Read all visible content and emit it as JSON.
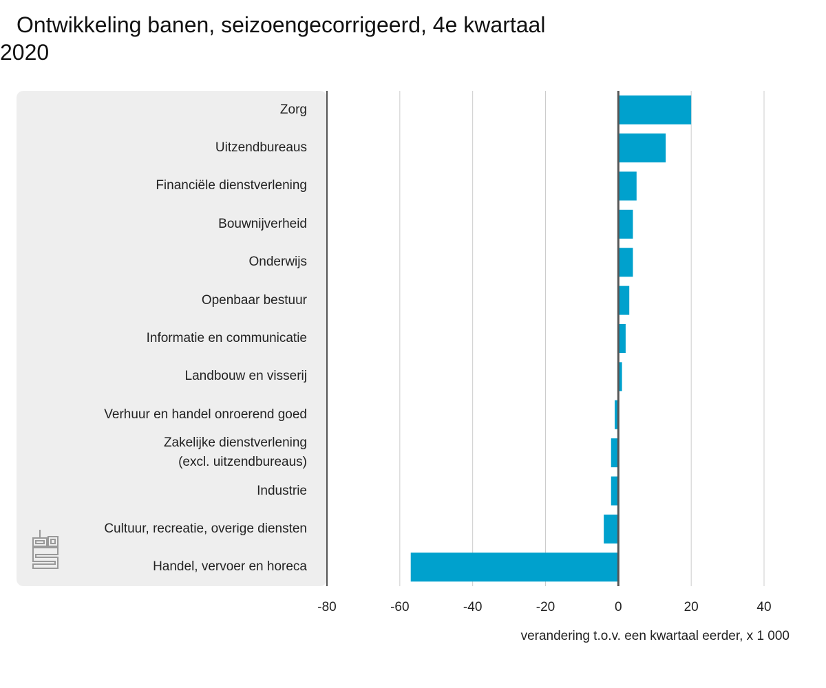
{
  "chart_data": {
    "type": "hbar",
    "title": "Ontwikkeling banen, seizoengecorrigeerd, 4e kwartaal 2020",
    "categories": [
      "Zorg",
      "Uitzendbureaus",
      "Financiële dienstverlening",
      "Bouwnijverheid",
      "Onderwijs",
      "Openbaar bestuur",
      "Informatie en communicatie",
      "Landbouw en visserij",
      "Verhuur en handel onroerend goed",
      "Zakelijke dienstverlening\n(excl. uitzendbureaus)",
      "Industrie",
      "Cultuur, recreatie, overige diensten",
      "Handel, vervoer en horeca"
    ],
    "values": [
      20,
      13,
      5,
      4,
      4,
      3,
      2,
      1,
      -1,
      -2,
      -2,
      -4,
      -57
    ],
    "color": "#00a1cd",
    "xlim": [
      -80,
      40
    ],
    "xticks": [
      -80,
      -60,
      -40,
      -20,
      0,
      20,
      40
    ],
    "x_label": "verandering t.o.v. een kwartaal eerder, x 1 000",
    "grid": true
  }
}
